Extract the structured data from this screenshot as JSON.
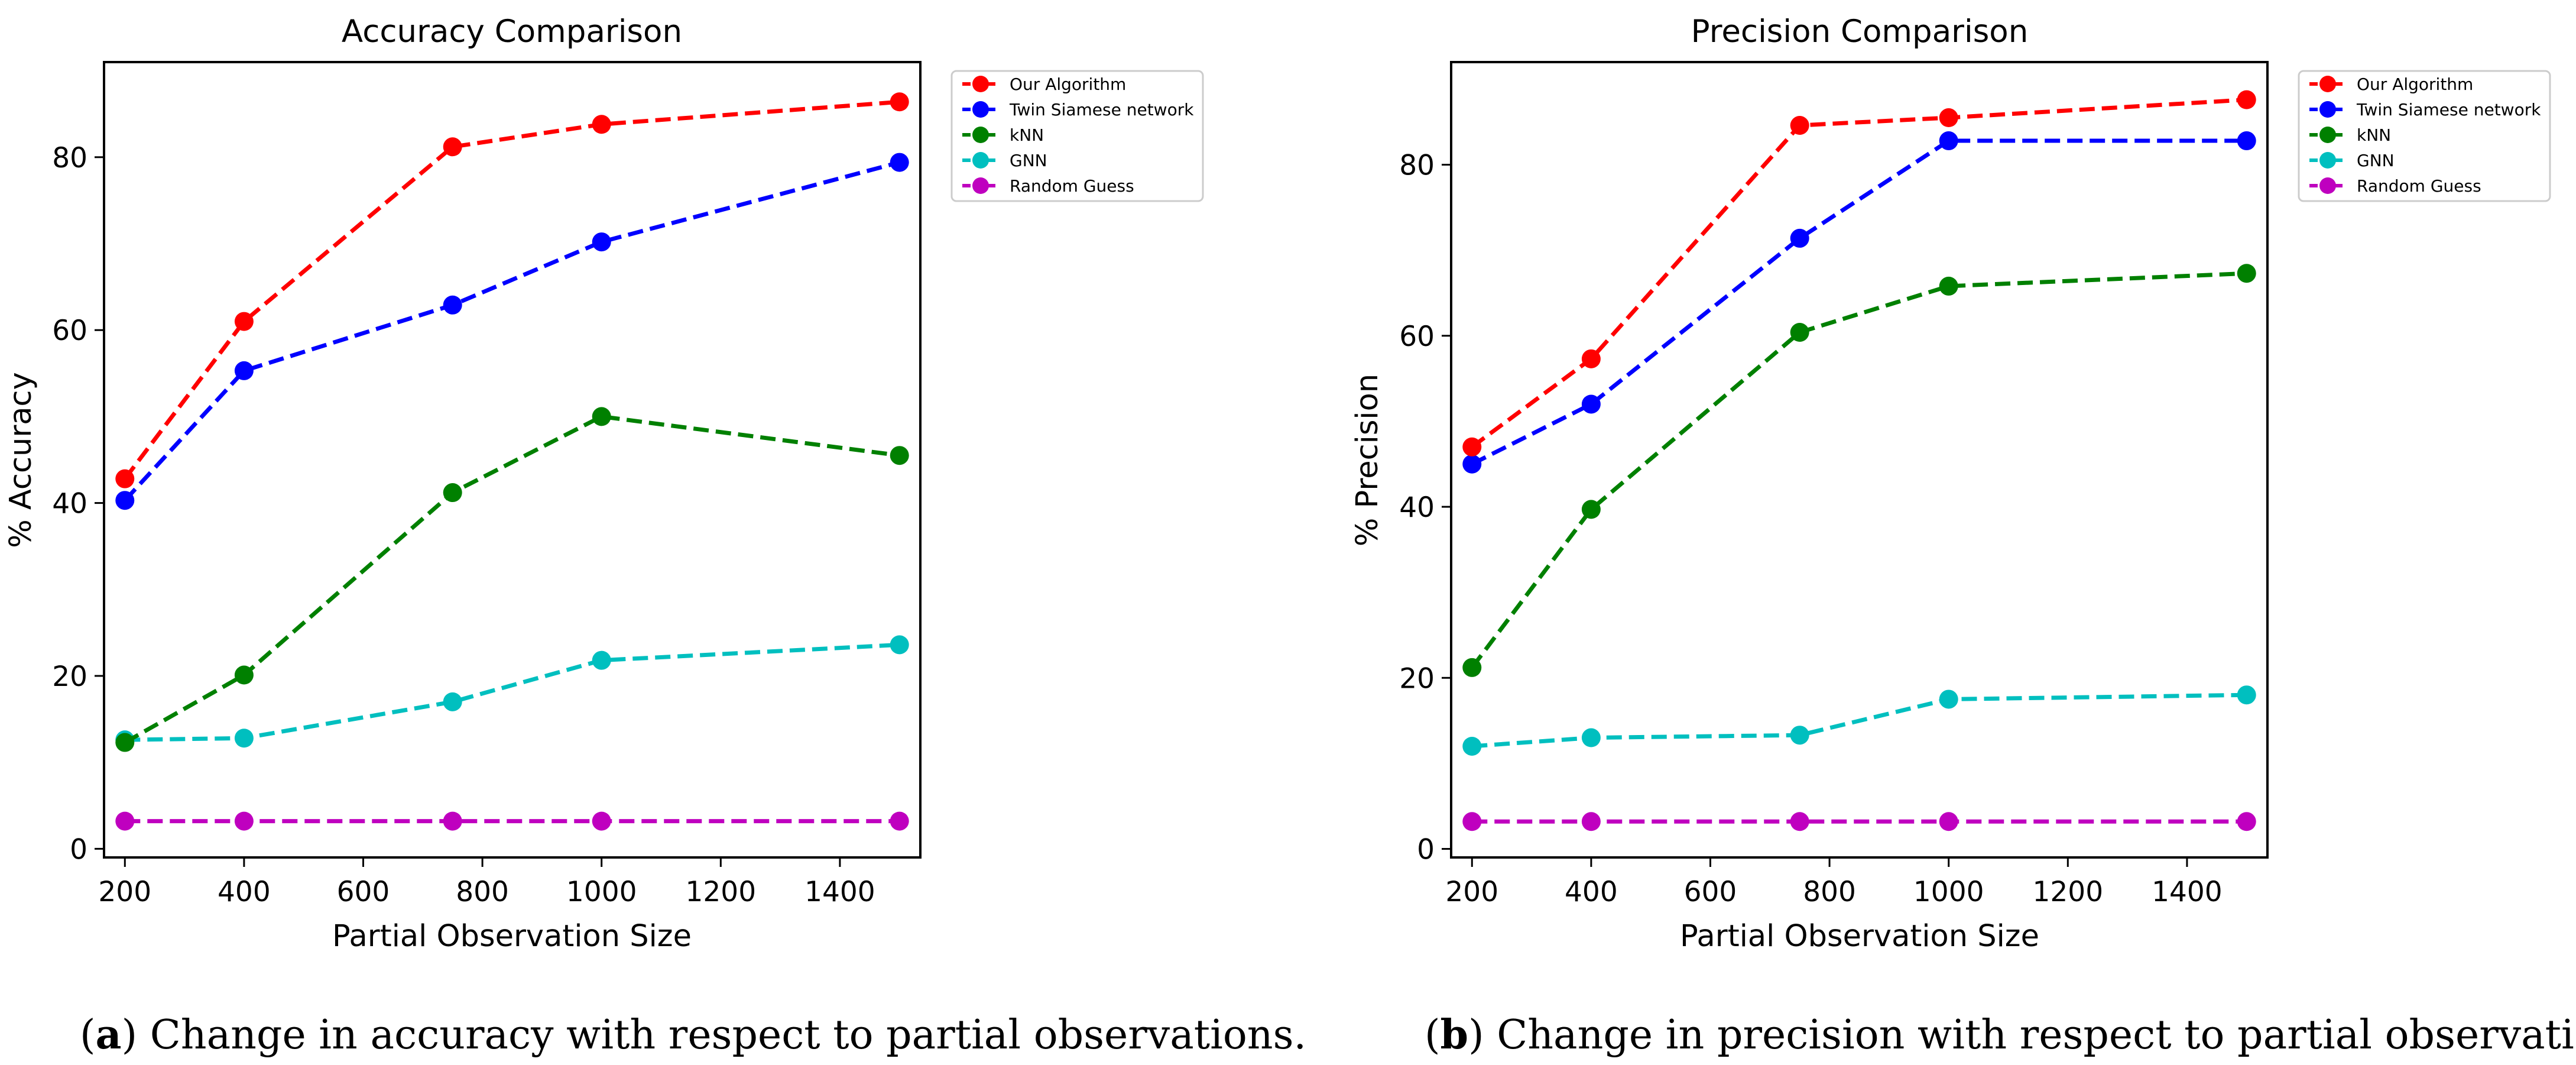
{
  "chart_data": [
    {
      "type": "line",
      "title": "Accuracy Comparison",
      "xlabel": "Partial Observation Size",
      "ylabel": "% Accuracy",
      "xlim": [
        165,
        1535
      ],
      "ylim": [
        -1,
        91
      ],
      "xticks": [
        200,
        400,
        600,
        800,
        1000,
        1200,
        1400
      ],
      "yticks": [
        0,
        20,
        40,
        60,
        80
      ],
      "legend_position": "upper-right outside",
      "x": [
        200,
        400,
        750,
        1000,
        1500
      ],
      "series": [
        {
          "name": "Our Algorithm",
          "color": "#ff0000",
          "values": [
            42.8,
            61.0,
            81.2,
            83.8,
            86.4
          ]
        },
        {
          "name": "Twin Siamese network",
          "color": "#0000ff",
          "values": [
            40.3,
            55.3,
            62.9,
            70.2,
            79.4
          ]
        },
        {
          "name": "kNN",
          "color": "#008000",
          "values": [
            12.3,
            20.1,
            41.2,
            50.0,
            45.5
          ]
        },
        {
          "name": "GNN",
          "color": "#00bfbf",
          "values": [
            12.6,
            12.8,
            17.0,
            21.8,
            23.6
          ]
        },
        {
          "name": "Random Guess",
          "color": "#bf00bf",
          "values": [
            3.2,
            3.2,
            3.2,
            3.2,
            3.2
          ]
        }
      ]
    },
    {
      "type": "line",
      "title": "Precision Comparison",
      "xlabel": "Partial Observation Size",
      "ylabel": "% Precision",
      "xlim": [
        165,
        1535
      ],
      "ylim": [
        -1,
        92
      ],
      "xticks": [
        200,
        400,
        600,
        800,
        1000,
        1200,
        1400
      ],
      "yticks": [
        0,
        20,
        40,
        60,
        80
      ],
      "legend_position": "upper-right outside",
      "x": [
        200,
        400,
        750,
        1000,
        1500
      ],
      "series": [
        {
          "name": "Our Algorithm",
          "color": "#ff0000",
          "values": [
            47.0,
            57.3,
            84.6,
            85.5,
            87.6
          ]
        },
        {
          "name": "Twin Siamese network",
          "color": "#0000ff",
          "values": [
            45.0,
            52.0,
            71.4,
            82.8,
            82.8
          ]
        },
        {
          "name": "kNN",
          "color": "#008000",
          "values": [
            21.2,
            39.7,
            60.4,
            65.8,
            67.3
          ]
        },
        {
          "name": "GNN",
          "color": "#00bfbf",
          "values": [
            12.0,
            13.0,
            13.3,
            17.5,
            18.0
          ]
        },
        {
          "name": "Random Guess",
          "color": "#bf00bf",
          "values": [
            3.2,
            3.2,
            3.2,
            3.2,
            3.2
          ]
        }
      ]
    }
  ],
  "captions": [
    {
      "label": "a",
      "text": "Change in accuracy with respect to partial observations."
    },
    {
      "label": "b",
      "text": "Change in precision with respect to partial observations."
    }
  ]
}
